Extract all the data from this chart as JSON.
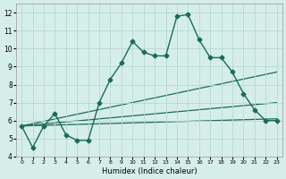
{
  "xlabel": "Humidex (Indice chaleur)",
  "xlim": [
    -0.5,
    23.5
  ],
  "ylim": [
    4,
    12.5
  ],
  "xticks": [
    0,
    1,
    2,
    3,
    4,
    5,
    6,
    7,
    8,
    9,
    10,
    11,
    12,
    13,
    14,
    15,
    16,
    17,
    18,
    19,
    20,
    21,
    22,
    23
  ],
  "yticks": [
    4,
    5,
    6,
    7,
    8,
    9,
    10,
    11,
    12
  ],
  "bg_color": "#d6eeea",
  "grid_color": "#b8d8d4",
  "line_color": "#1a6b5a",
  "main_series": {
    "x": [
      0,
      1,
      2,
      3,
      4,
      5,
      6,
      7,
      8,
      9,
      10,
      11,
      12,
      13,
      14,
      15,
      16,
      17,
      18,
      19,
      20,
      21,
      22,
      23
    ],
    "y": [
      5.7,
      4.5,
      5.7,
      6.4,
      5.2,
      4.9,
      4.9,
      7.0,
      8.3,
      9.2,
      10.4,
      9.8,
      9.6,
      9.6,
      11.8,
      11.9,
      10.5,
      9.5,
      9.5,
      8.7,
      7.5,
      6.6,
      6.0,
      6.0
    ],
    "marker": "D",
    "markersize": 2.5,
    "linewidth": 1.0
  },
  "trend_lines": [
    {
      "x": [
        0,
        23
      ],
      "y": [
        5.7,
        8.7
      ]
    },
    {
      "x": [
        0,
        23
      ],
      "y": [
        5.7,
        7.0
      ]
    },
    {
      "x": [
        0,
        23
      ],
      "y": [
        5.7,
        6.1
      ]
    }
  ]
}
